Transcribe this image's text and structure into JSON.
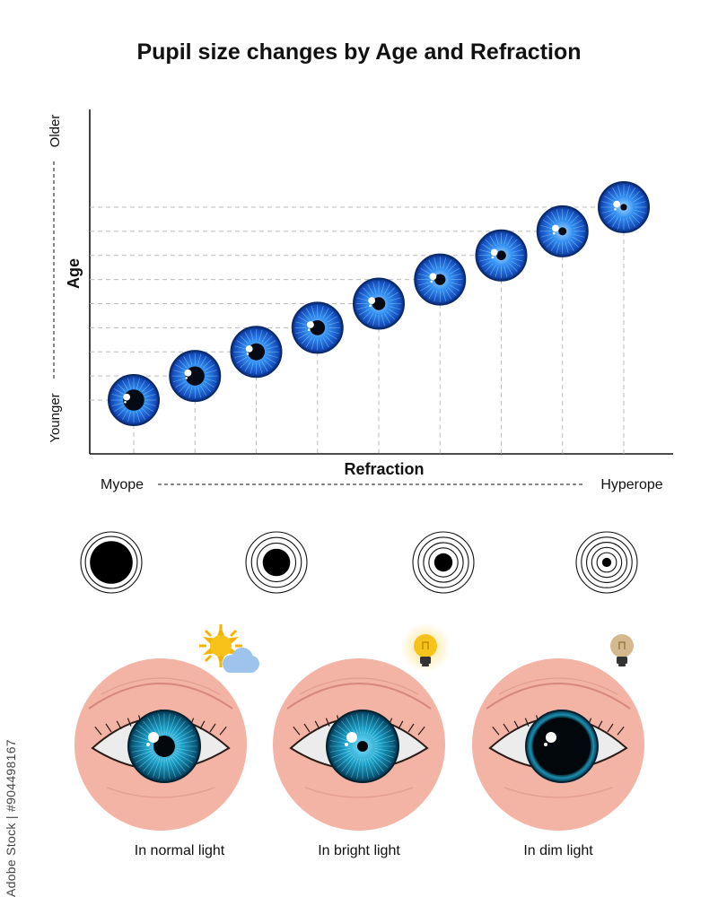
{
  "title": "Pupil size changes by Age and Refraction",
  "chart": {
    "y_axis_label": "Age",
    "y_low_label": "Younger",
    "y_high_label": "Older",
    "x_axis_label": "Refraction",
    "x_low_label": "Myope",
    "x_high_label": "Hyperope"
  },
  "chart_data": {
    "type": "scatter",
    "title": "Pupil size changes by Age and Refraction",
    "xlabel": "Refraction",
    "ylabel": "Age",
    "x_range_labels": [
      "Myope",
      "Hyperope"
    ],
    "y_range_labels": [
      "Younger",
      "Older"
    ],
    "points": [
      {
        "step": 1,
        "pupil_fraction": 0.42
      },
      {
        "step": 2,
        "pupil_fraction": 0.38
      },
      {
        "step": 3,
        "pupil_fraction": 0.34
      },
      {
        "step": 4,
        "pupil_fraction": 0.3
      },
      {
        "step": 5,
        "pupil_fraction": 0.26
      },
      {
        "step": 6,
        "pupil_fraction": 0.22
      },
      {
        "step": 7,
        "pupil_fraction": 0.19
      },
      {
        "step": 8,
        "pupil_fraction": 0.16
      },
      {
        "step": 9,
        "pupil_fraction": 0.13
      }
    ],
    "grid": true,
    "marker": "blue-eye-iris"
  },
  "pupil_rings": [
    {
      "pupil_fraction": 0.7,
      "rings": 2
    },
    {
      "pupil_fraction": 0.45,
      "rings": 3
    },
    {
      "pupil_fraction": 0.3,
      "rings": 4
    },
    {
      "pupil_fraction": 0.15,
      "rings": 5
    }
  ],
  "eyes": [
    {
      "caption": "In normal light",
      "icon": "sun-cloud-icon",
      "pupil_fraction": 0.3
    },
    {
      "caption": "In bright light",
      "icon": "lit-bulb-icon",
      "pupil_fraction": 0.15
    },
    {
      "caption": "In dim light",
      "icon": "dim-bulb-icon",
      "pupil_fraction": 0.8
    }
  ],
  "watermark": "Adobe Stock | #904498167",
  "colors": {
    "iris_blue": "#1e6fe0",
    "iris_teal": "#0d6f8a",
    "skin": "#f3b3a5",
    "sun": "#f5b301",
    "cloud": "#9ec3ec"
  }
}
